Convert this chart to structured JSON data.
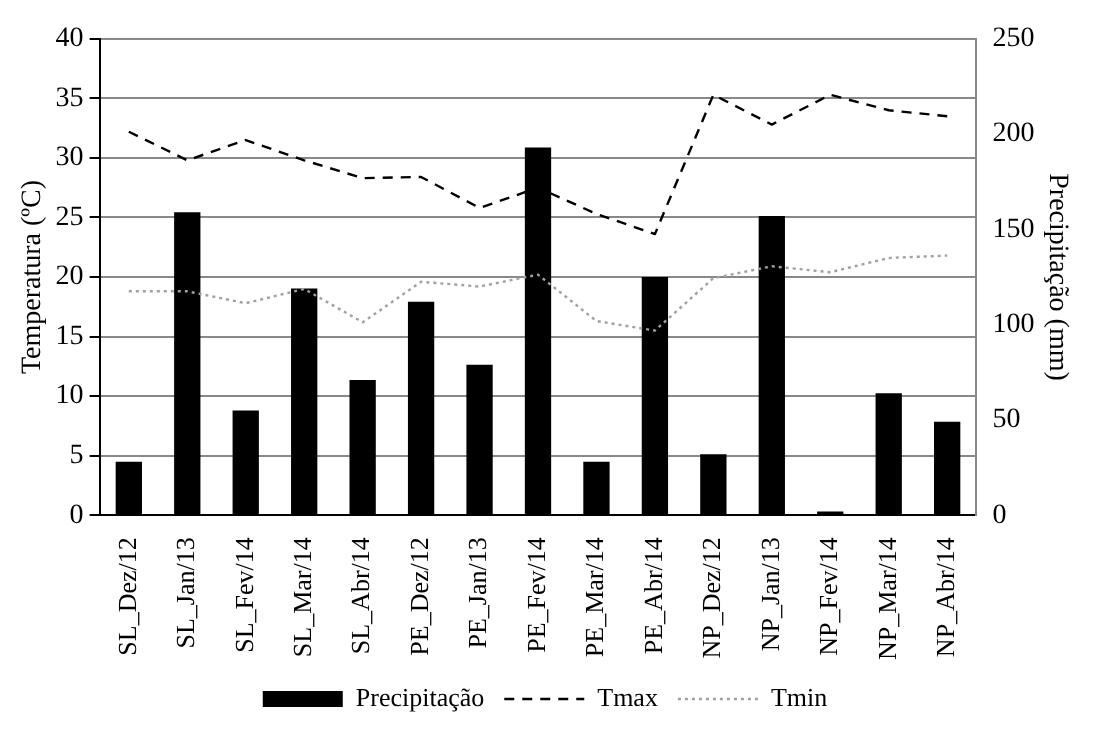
{
  "chart_data": {
    "type": "bar",
    "categories": [
      "SL_Dez/12",
      "SL_Jan/13",
      "SL_Fev/14",
      "SL_Mar/14",
      "SL_Abr/14",
      "PE_Dez/12",
      "PE_Jan/13",
      "PE_Fev/14",
      "PE_Mar/14",
      "PE_Abr/14",
      "NP_Dez/12",
      "NP_Jan/13",
      "NP_Fev/14",
      "NP_Mar/14",
      "NP_Abr/14"
    ],
    "ylabel": "Temperatura (ºC)",
    "y2label": "Precipitação (mm)",
    "ylim": [
      0,
      40
    ],
    "yticks": [
      0,
      5,
      10,
      15,
      20,
      25,
      30,
      35,
      40
    ],
    "y2lim": [
      0,
      250
    ],
    "y2ticks": [
      0,
      50,
      100,
      150,
      200,
      250
    ],
    "grid": "y",
    "legend": "bottom",
    "series": [
      {
        "name": "Precipitação",
        "axis": "y2",
        "color": "#000000",
        "values": [
          28,
          159,
          55,
          119,
          71,
          112,
          79,
          193,
          28,
          125,
          32,
          157,
          2,
          64,
          49
        ]
      },
      {
        "name": "Tmax",
        "type": "line",
        "axis": "y",
        "color": "#000000",
        "line_style": "dashed",
        "values": [
          32.2,
          29.8,
          31.5,
          29.8,
          28.3,
          28.4,
          25.8,
          27.5,
          25.3,
          23.6,
          35.3,
          32.8,
          35.3,
          34,
          33.5
        ]
      },
      {
        "name": "Tmin",
        "type": "line",
        "axis": "y",
        "color": "#a0a0a0",
        "line_style": "dotted",
        "values": [
          18.8,
          18.8,
          17.8,
          19,
          16.2,
          19.6,
          19.2,
          20.2,
          16.3,
          15.5,
          19.9,
          20.9,
          20.4,
          21.6,
          21.8
        ]
      }
    ]
  }
}
